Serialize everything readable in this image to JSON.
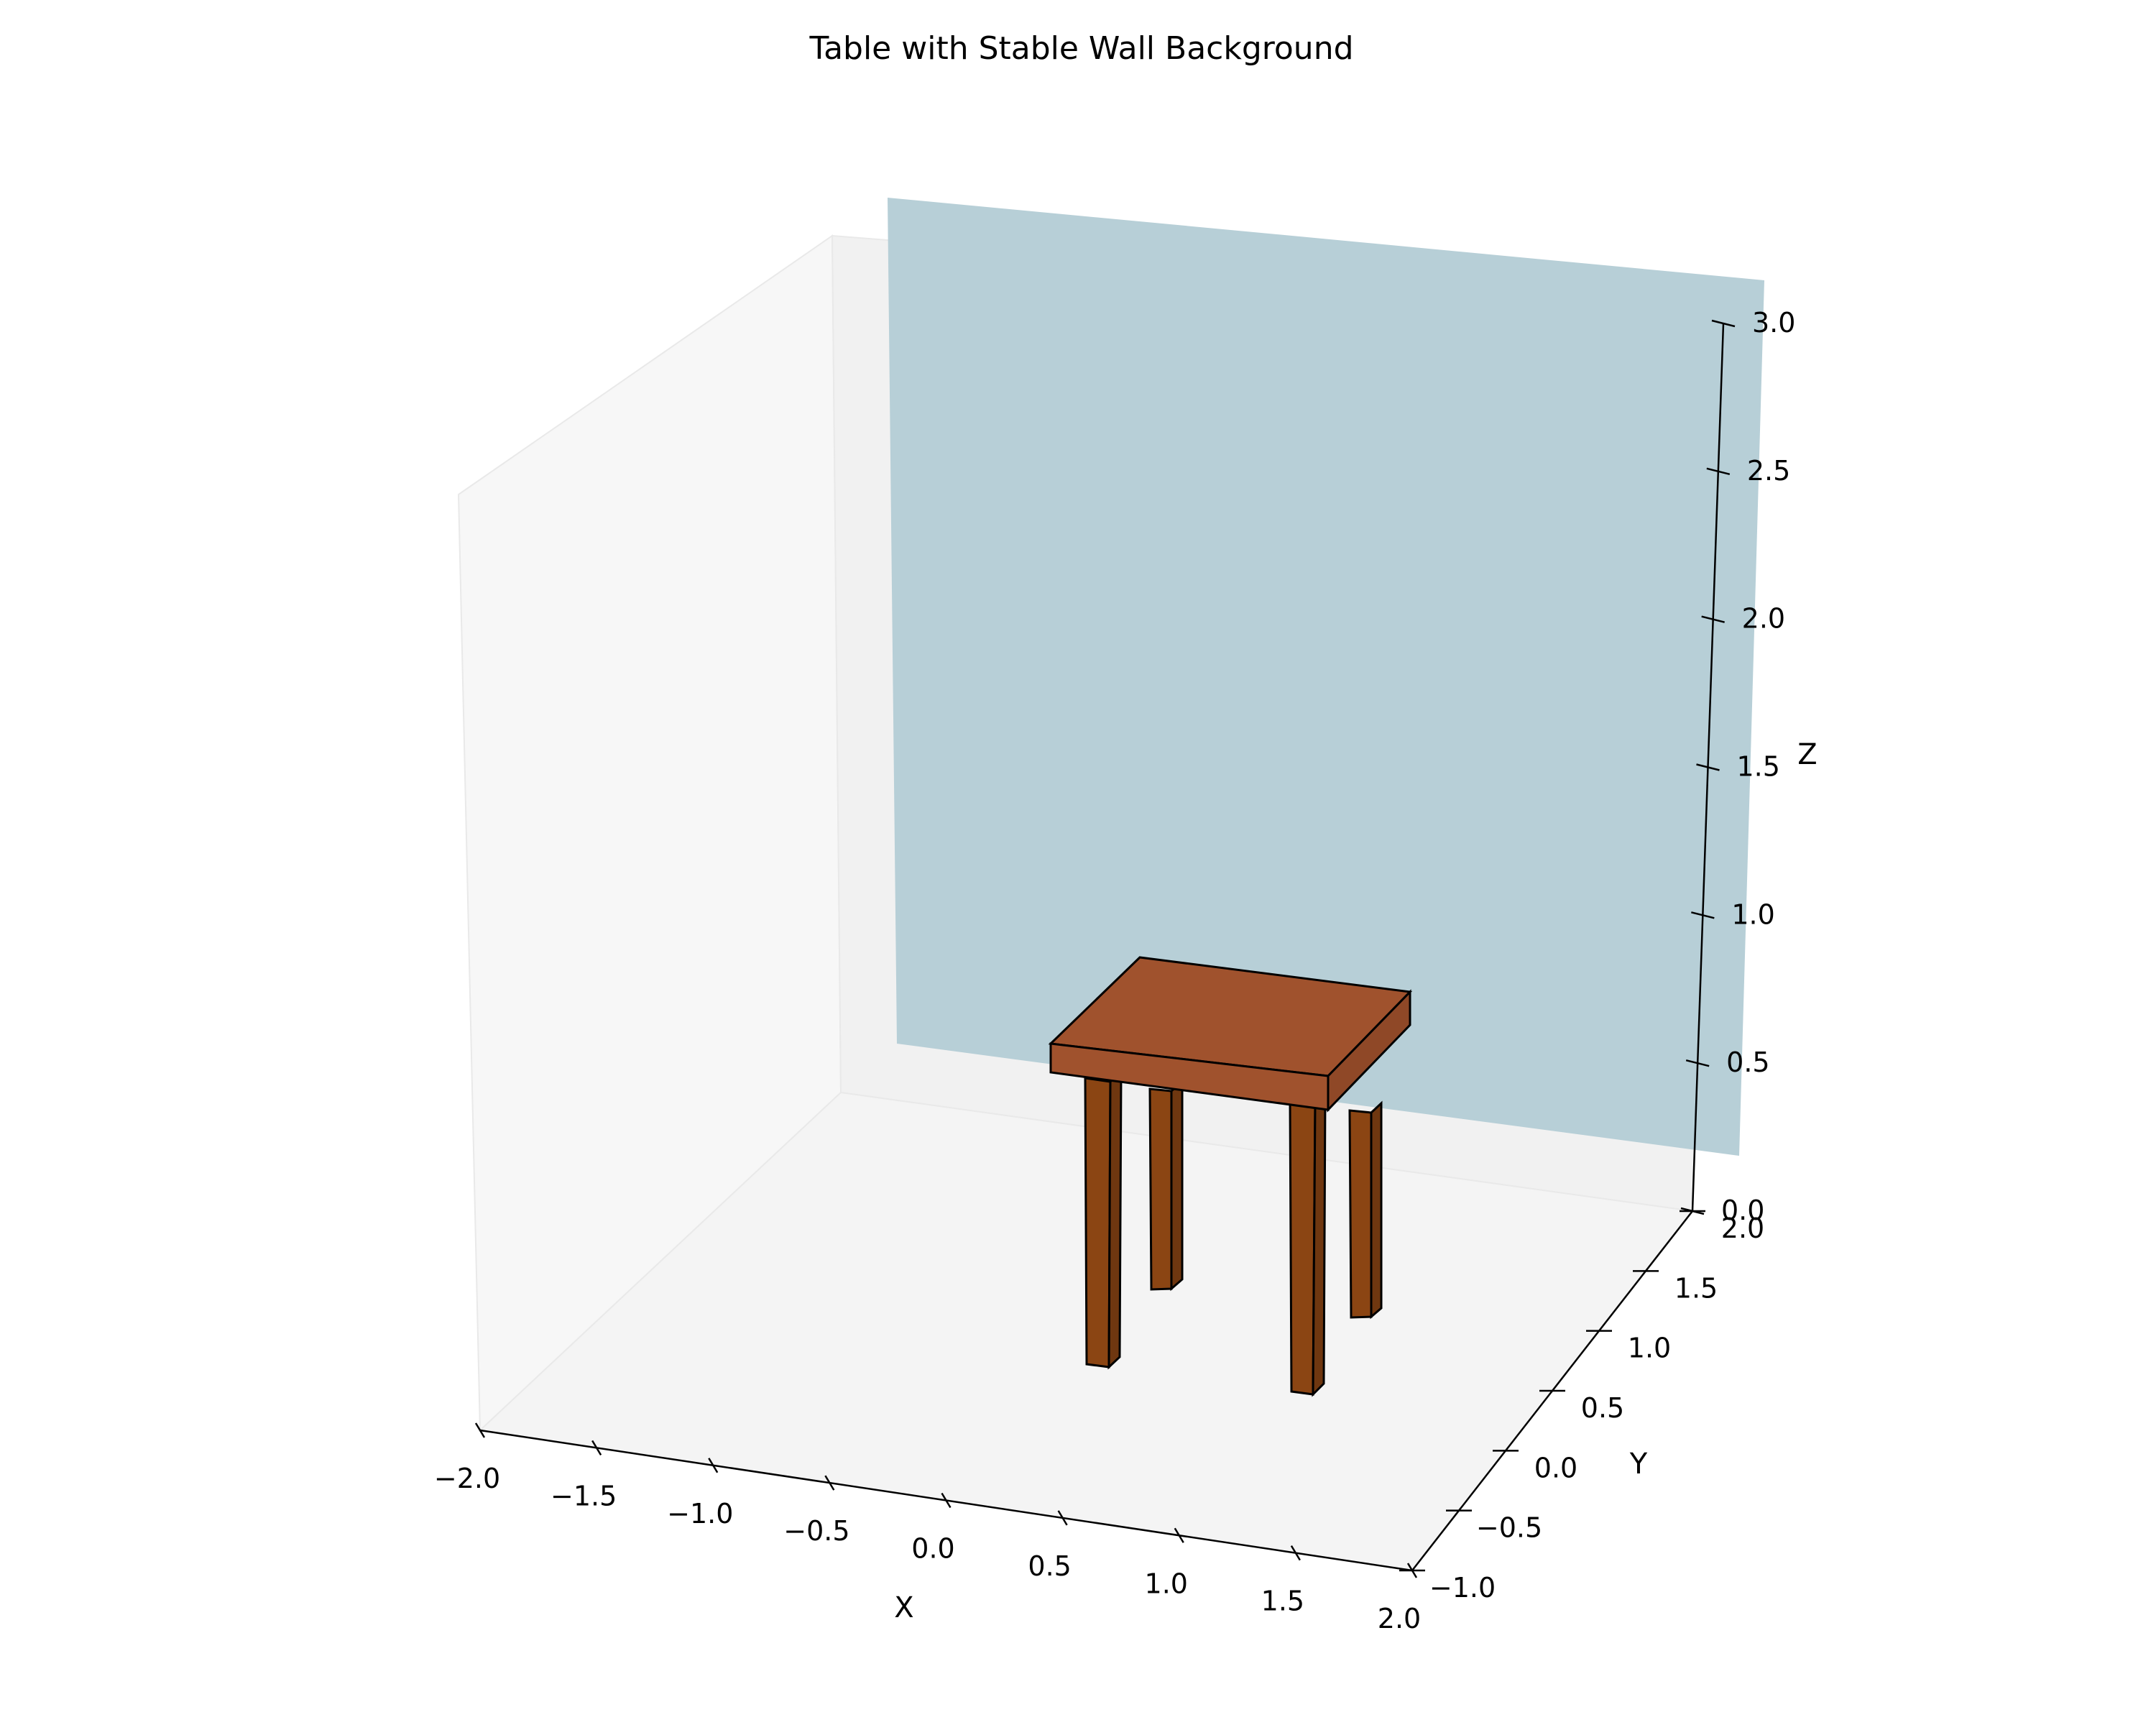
{
  "chart_data": {
    "type": "3d-surface",
    "title": "Table with Stable Wall Background",
    "xlabel": "X",
    "ylabel": "Y",
    "zlabel": "Z",
    "xlim": [
      -2.0,
      2.0
    ],
    "ylim": [
      -1.0,
      2.0
    ],
    "zlim": [
      0.0,
      3.0
    ],
    "x_ticks": [
      "−2.0",
      "−1.5",
      "−1.0",
      "−0.5",
      "0.0",
      "0.5",
      "1.0",
      "1.5",
      "2.0"
    ],
    "y_ticks": [
      "−1.0",
      "−0.5",
      "0.0",
      "0.5",
      "1.0",
      "1.5",
      "2.0"
    ],
    "z_ticks": [
      "0.0",
      "0.5",
      "1.0",
      "1.5",
      "2.0",
      "2.5",
      "3.0"
    ],
    "objects": [
      {
        "kind": "wall",
        "color": "#add8e6",
        "x": [
          -2.0,
          2.0
        ],
        "y": 2.0,
        "z": [
          0.0,
          3.0
        ]
      },
      {
        "kind": "table-top",
        "color": "#a0522d",
        "x": [
          0.5,
          1.5
        ],
        "y": [
          0.0,
          1.0
        ],
        "z": [
          0.7,
          0.8
        ]
      },
      {
        "kind": "table-legs",
        "color": "#8b4513",
        "x_positions": [
          0.55,
          1.45
        ],
        "y_positions": [
          0.05,
          0.95
        ],
        "z": [
          0.0,
          0.7
        ]
      }
    ]
  }
}
